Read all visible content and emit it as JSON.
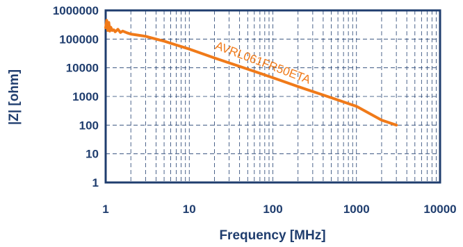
{
  "chart_data": {
    "type": "line",
    "xscale": "log",
    "yscale": "log",
    "xlim": [
      1,
      10000
    ],
    "ylim": [
      1,
      1000000
    ],
    "xlabel": "Frequency [MHz]",
    "ylabel": "|Z| [ohm]",
    "x_ticks": [
      "1",
      "10",
      "100",
      "1000",
      "10000"
    ],
    "y_ticks": [
      "1",
      "10",
      "100",
      "1000",
      "10000",
      "100000",
      "1000000"
    ],
    "grid": true,
    "series": [
      {
        "name": "AVRL061FR50ETA",
        "color": "#f07a19",
        "x": [
          1.0,
          1.03,
          1.06,
          1.09,
          1.12,
          1.15,
          1.2,
          1.25,
          1.3,
          1.4,
          1.5,
          1.6,
          1.8,
          2.0,
          2.5,
          3,
          4,
          5,
          7,
          10,
          20,
          50,
          100,
          200,
          500,
          1000,
          2000,
          3000
        ],
        "y": [
          250000,
          450000,
          200000,
          380000,
          190000,
          260000,
          200000,
          210000,
          180000,
          220000,
          170000,
          190000,
          165000,
          150000,
          135000,
          125000,
          100000,
          85000,
          62000,
          45000,
          22000,
          9000,
          4500,
          2200,
          900,
          450,
          150,
          100
        ]
      }
    ]
  }
}
